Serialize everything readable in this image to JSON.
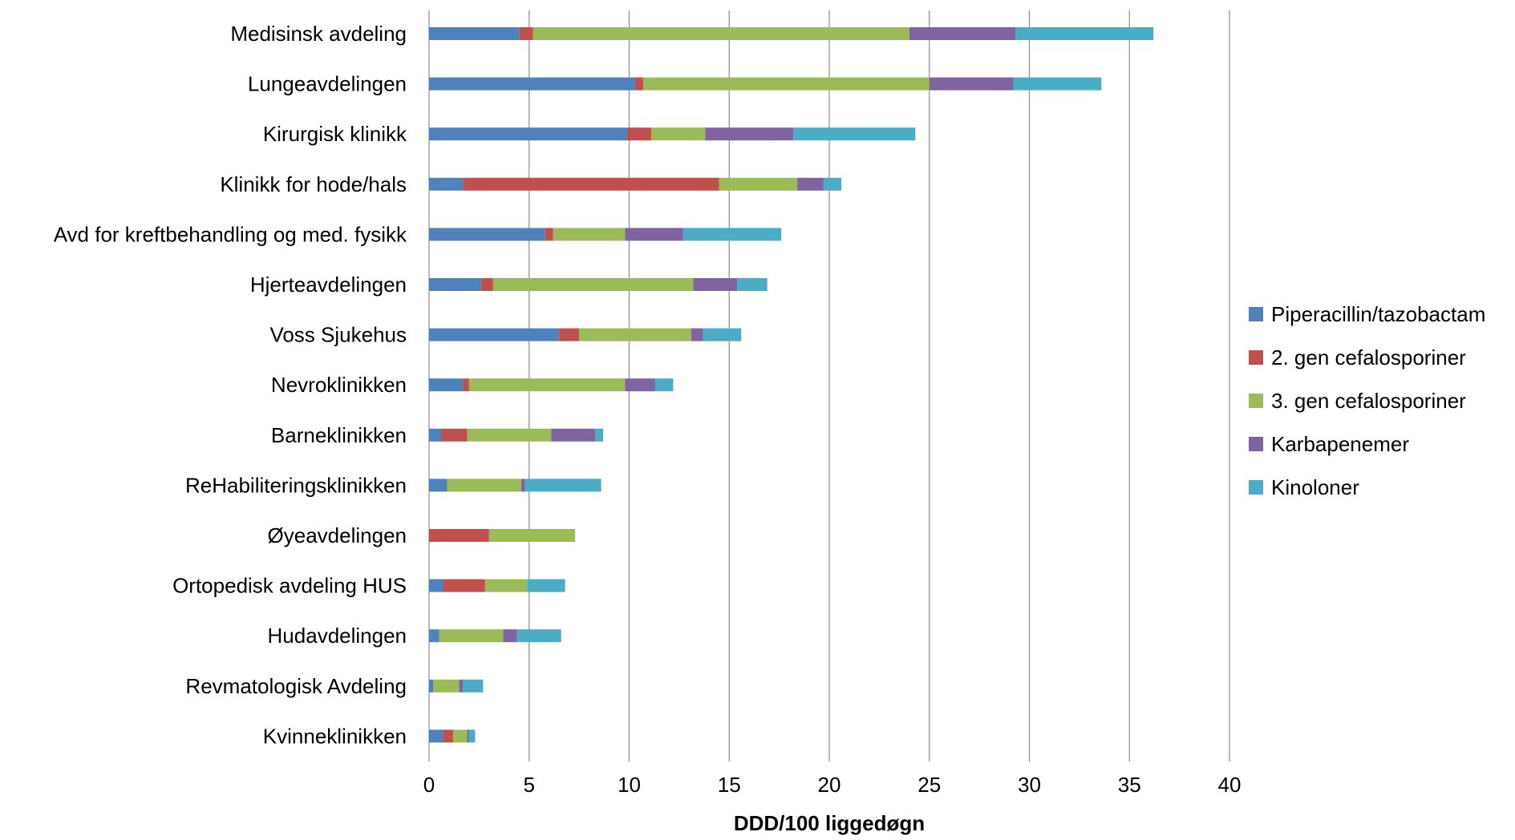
{
  "chart_data": {
    "type": "bar",
    "orientation": "horizontal",
    "stacked": true,
    "categories": [
      "Medisinsk avdeling",
      "Lungeavdelingen",
      "Kirurgisk klinikk",
      "Klinikk for hode/hals",
      "Avd for kreftbehandling og med. fysikk",
      "Hjerteavdelingen",
      "Voss Sjukehus",
      "Nevroklinikken",
      "Barneklinikken",
      "ReHabiliteringsklinikken",
      "Øyeavdelingen",
      "Ortopedisk avdeling HUS",
      "Hudavdelingen",
      "Revmatologisk Avdeling",
      "Kvinneklinikken"
    ],
    "series": [
      {
        "name": "Piperacillin/tazobactam",
        "color": "#4f81bd",
        "values": [
          4.5,
          10.3,
          9.9,
          1.7,
          5.8,
          2.6,
          6.5,
          1.7,
          0.6,
          0.9,
          0.0,
          0.7,
          0.5,
          0.2,
          0.7
        ]
      },
      {
        "name": "2. gen cefalosporiner",
        "color": "#c0504d",
        "values": [
          0.7,
          0.4,
          1.2,
          12.8,
          0.4,
          0.6,
          1.0,
          0.3,
          1.3,
          0.0,
          3.0,
          2.1,
          0.0,
          0.0,
          0.5
        ]
      },
      {
        "name": "3. gen cefalosporiner",
        "color": "#9bbb59",
        "values": [
          18.8,
          14.3,
          2.7,
          3.9,
          3.6,
          10.0,
          5.6,
          7.8,
          4.2,
          3.7,
          4.3,
          2.1,
          3.2,
          1.3,
          0.7
        ]
      },
      {
        "name": "Karbapenemer",
        "color": "#8064a2",
        "values": [
          5.3,
          4.2,
          4.4,
          1.3,
          2.9,
          2.2,
          0.6,
          1.5,
          2.2,
          0.2,
          0.0,
          0.0,
          0.7,
          0.2,
          0.1
        ]
      },
      {
        "name": "Kinoloner",
        "color": "#4bacc6",
        "values": [
          6.9,
          4.4,
          6.1,
          0.9,
          4.9,
          1.5,
          1.9,
          0.9,
          0.4,
          3.8,
          0.0,
          1.9,
          2.2,
          1.0,
          0.3
        ]
      }
    ],
    "xlabel": "DDD/100 liggedøgn",
    "xlim": [
      0,
      40
    ],
    "xticks": [
      0,
      5,
      10,
      15,
      20,
      25,
      30,
      35,
      40
    ],
    "grid": "vertical major gridlines",
    "legend_position": "right"
  }
}
